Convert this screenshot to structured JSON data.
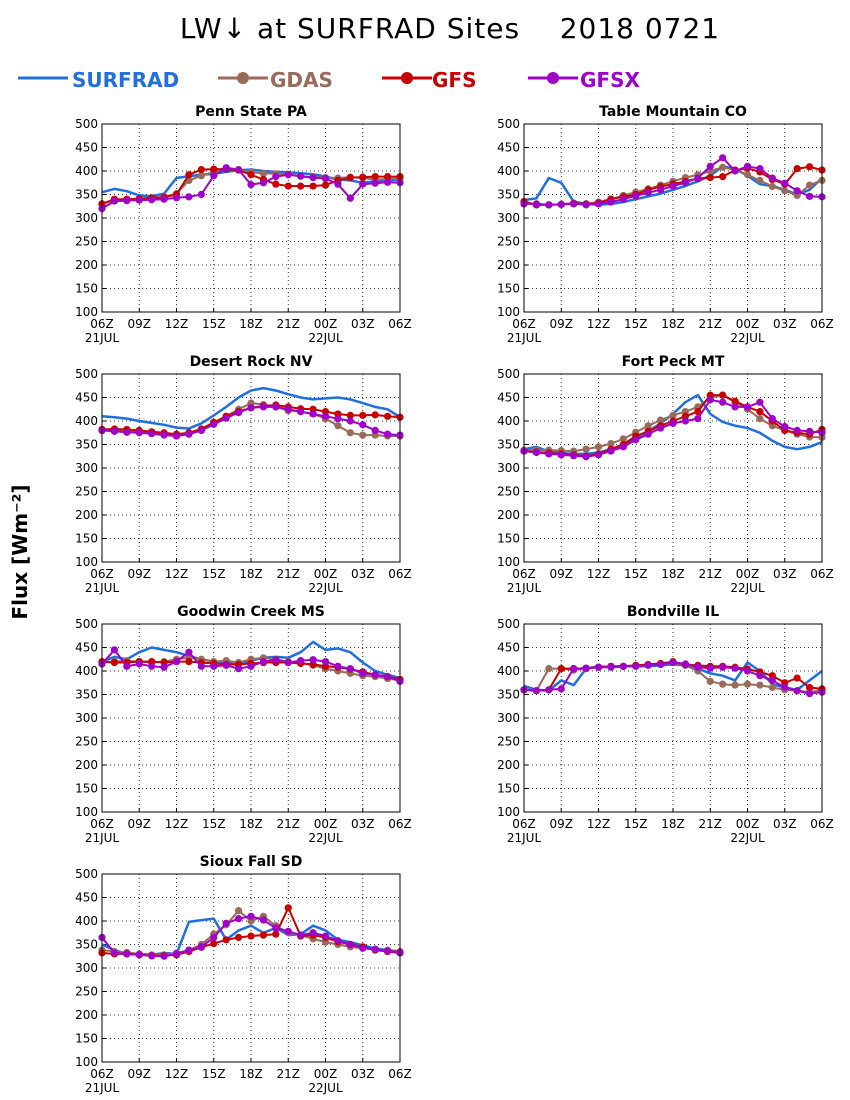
{
  "figure": {
    "title": "LW↓ at SURFRAD Sites    2018 0721",
    "ylabel": "Flux [Wm⁻²]"
  },
  "legend": [
    {
      "name": "SURFRAD",
      "color": "#1f6fe0",
      "marker": false
    },
    {
      "name": "GDAS",
      "color": "#9a6a5a",
      "marker": true
    },
    {
      "name": "GFS",
      "color": "#c80000",
      "marker": true
    },
    {
      "name": "GFSX",
      "color": "#a000c8",
      "marker": true
    }
  ],
  "axes_common": {
    "yticks": [
      "100",
      "150",
      "200",
      "250",
      "300",
      "350",
      "400",
      "450",
      "500"
    ],
    "xticks": [
      "06Z",
      "09Z",
      "12Z",
      "15Z",
      "18Z",
      "21Z",
      "00Z",
      "03Z",
      "06Z"
    ],
    "xdates": [
      {
        "label": "21JUL",
        "tick_index": 0
      },
      {
        "label": "22JUL",
        "tick_index": 6
      }
    ],
    "ylim": [
      100,
      500
    ],
    "xlim_hours": [
      0,
      24
    ],
    "grid": true
  },
  "chart_data": [
    {
      "type": "line",
      "title": "Penn State PA",
      "x_hours": [
        0,
        1,
        2,
        3,
        4,
        5,
        6,
        7,
        8,
        9,
        10,
        11,
        12,
        13,
        14,
        15,
        16,
        17,
        18,
        19,
        20,
        21,
        22,
        23,
        24
      ],
      "series": [
        {
          "name": "SURFRAD",
          "values": [
            355,
            362,
            357,
            348,
            346,
            352,
            385,
            389,
            392,
            394,
            398,
            402,
            403,
            400,
            398,
            397,
            395,
            393,
            388,
            382,
            380,
            375,
            378,
            380,
            382
          ]
        },
        {
          "name": "GDAS",
          "values": [
            330,
            338,
            339,
            340,
            340,
            345,
            352,
            380,
            390,
            398,
            405,
            402,
            397,
            395,
            394,
            393,
            389,
            387,
            386,
            385,
            387,
            385,
            382,
            383,
            384
          ]
        },
        {
          "name": "GFS",
          "values": [
            330,
            340,
            340,
            341,
            343,
            344,
            350,
            392,
            403,
            404,
            404,
            402,
            392,
            382,
            372,
            368,
            368,
            368,
            370,
            380,
            386,
            387,
            388,
            388,
            388
          ]
        },
        {
          "name": "GFSX",
          "values": [
            320,
            336,
            337,
            338,
            339,
            340,
            343,
            345,
            350,
            390,
            407,
            403,
            371,
            375,
            388,
            392,
            389,
            386,
            384,
            372,
            342,
            372,
            374,
            376,
            375
          ]
        }
      ]
    },
    {
      "type": "line",
      "title": "Table Mountain CO",
      "x_hours": [
        0,
        1,
        2,
        3,
        4,
        5,
        6,
        7,
        8,
        9,
        10,
        11,
        12,
        13,
        14,
        15,
        16,
        17,
        18,
        19,
        20,
        21,
        22,
        23,
        24
      ],
      "series": [
        {
          "name": "SURFRAD",
          "values": [
            338,
            342,
            385,
            375,
            335,
            330,
            328,
            330,
            334,
            340,
            346,
            352,
            360,
            368,
            378,
            390,
            410,
            405,
            390,
            372,
            368,
            360,
            350,
            360,
            385
          ]
        },
        {
          "name": "GDAS",
          "values": [
            335,
            328,
            328,
            329,
            332,
            330,
            334,
            340,
            348,
            355,
            362,
            370,
            378,
            386,
            392,
            400,
            408,
            402,
            392,
            380,
            367,
            358,
            348,
            370,
            380
          ]
        },
        {
          "name": "GFS",
          "values": [
            335,
            328,
            328,
            329,
            331,
            330,
            332,
            340,
            345,
            350,
            360,
            367,
            372,
            378,
            384,
            386,
            388,
            402,
            406,
            398,
            382,
            372,
            405,
            409,
            402
          ]
        },
        {
          "name": "GFSX",
          "values": [
            330,
            330,
            328,
            329,
            330,
            328,
            330,
            334,
            340,
            347,
            354,
            360,
            368,
            375,
            385,
            410,
            428,
            400,
            410,
            405,
            385,
            374,
            358,
            346,
            345
          ]
        }
      ]
    },
    {
      "type": "line",
      "title": "Desert Rock NV",
      "x_hours": [
        0,
        1,
        2,
        3,
        4,
        5,
        6,
        7,
        8,
        9,
        10,
        11,
        12,
        13,
        14,
        15,
        16,
        17,
        18,
        19,
        20,
        21,
        22,
        23,
        24
      ],
      "series": [
        {
          "name": "SURFRAD",
          "values": [
            410,
            408,
            405,
            400,
            396,
            392,
            386,
            384,
            395,
            412,
            430,
            450,
            465,
            470,
            465,
            457,
            450,
            446,
            448,
            450,
            446,
            438,
            430,
            425,
            408
          ]
        },
        {
          "name": "GDAS",
          "values": [
            380,
            381,
            379,
            378,
            374,
            372,
            370,
            372,
            380,
            395,
            410,
            425,
            438,
            435,
            430,
            422,
            420,
            415,
            405,
            390,
            375,
            370,
            370,
            368,
            368
          ]
        },
        {
          "name": "GFS",
          "values": [
            382,
            383,
            382,
            380,
            377,
            375,
            372,
            375,
            383,
            397,
            410,
            420,
            428,
            432,
            434,
            430,
            426,
            425,
            420,
            415,
            412,
            412,
            413,
            410,
            408
          ]
        },
        {
          "name": "GFSX",
          "values": [
            380,
            378,
            376,
            375,
            373,
            370,
            368,
            372,
            380,
            393,
            406,
            418,
            428,
            430,
            430,
            425,
            420,
            415,
            410,
            405,
            400,
            392,
            380,
            372,
            370
          ]
        }
      ]
    },
    {
      "type": "line",
      "title": "Fort Peck MT",
      "x_hours": [
        0,
        1,
        2,
        3,
        4,
        5,
        6,
        7,
        8,
        9,
        10,
        11,
        12,
        13,
        14,
        15,
        16,
        17,
        18,
        19,
        20,
        21,
        22,
        23,
        24
      ],
      "series": [
        {
          "name": "SURFRAD",
          "values": [
            340,
            345,
            335,
            332,
            330,
            330,
            333,
            340,
            350,
            362,
            378,
            395,
            415,
            440,
            455,
            415,
            398,
            390,
            385,
            375,
            358,
            345,
            340,
            345,
            355
          ]
        },
        {
          "name": "GDAS",
          "values": [
            338,
            338,
            338,
            337,
            336,
            340,
            345,
            352,
            362,
            376,
            390,
            402,
            412,
            420,
            430,
            450,
            455,
            440,
            425,
            405,
            390,
            380,
            372,
            366,
            365
          ]
        },
        {
          "name": "GFS",
          "values": [
            336,
            334,
            332,
            330,
            328,
            325,
            330,
            340,
            350,
            368,
            378,
            390,
            400,
            410,
            420,
            455,
            455,
            442,
            430,
            420,
            400,
            380,
            375,
            372,
            382
          ]
        },
        {
          "name": "GFSX",
          "values": [
            336,
            333,
            330,
            328,
            326,
            324,
            328,
            336,
            345,
            360,
            372,
            385,
            395,
            400,
            405,
            445,
            440,
            430,
            430,
            440,
            405,
            388,
            380,
            378,
            375
          ]
        }
      ]
    },
    {
      "type": "line",
      "title": "Goodwin Creek MS",
      "x_hours": [
        0,
        1,
        2,
        3,
        4,
        5,
        6,
        7,
        8,
        9,
        10,
        11,
        12,
        13,
        14,
        15,
        16,
        17,
        18,
        19,
        20,
        21,
        22,
        23,
        24
      ],
      "series": [
        {
          "name": "SURFRAD",
          "values": [
            420,
            430,
            425,
            440,
            450,
            445,
            440,
            432,
            425,
            420,
            418,
            412,
            422,
            428,
            430,
            428,
            440,
            462,
            445,
            448,
            440,
            418,
            400,
            392,
            385
          ]
        },
        {
          "name": "GDAS",
          "values": [
            418,
            420,
            422,
            420,
            418,
            420,
            425,
            428,
            425,
            420,
            422,
            418,
            425,
            428,
            425,
            420,
            418,
            412,
            405,
            400,
            395,
            390,
            388,
            384,
            380
          ]
        },
        {
          "name": "GFS",
          "values": [
            420,
            418,
            418,
            420,
            420,
            418,
            420,
            420,
            418,
            416,
            414,
            414,
            416,
            418,
            418,
            418,
            416,
            414,
            410,
            408,
            404,
            398,
            392,
            388,
            382
          ]
        },
        {
          "name": "GFSX",
          "values": [
            415,
            445,
            410,
            415,
            410,
            408,
            420,
            440,
            410,
            410,
            412,
            405,
            410,
            420,
            424,
            418,
            422,
            424,
            420,
            410,
            405,
            395,
            392,
            388,
            378
          ]
        }
      ]
    },
    {
      "type": "line",
      "title": "Bondville IL",
      "x_hours": [
        0,
        1,
        2,
        3,
        4,
        5,
        6,
        7,
        8,
        9,
        10,
        11,
        12,
        13,
        14,
        15,
        16,
        17,
        18,
        19,
        20,
        21,
        22,
        23,
        24
      ],
      "series": [
        {
          "name": "SURFRAD",
          "values": [
            368,
            360,
            358,
            380,
            370,
            405,
            410,
            408,
            410,
            410,
            410,
            412,
            414,
            412,
            405,
            395,
            390,
            380,
            418,
            400,
            372,
            365,
            360,
            380,
            400
          ]
        },
        {
          "name": "GDAS",
          "values": [
            360,
            358,
            405,
            405,
            402,
            405,
            408,
            410,
            410,
            412,
            413,
            414,
            418,
            412,
            400,
            378,
            372,
            370,
            372,
            370,
            365,
            360,
            358,
            355,
            360
          ]
        },
        {
          "name": "GFS",
          "values": [
            360,
            358,
            360,
            405,
            405,
            406,
            408,
            410,
            410,
            412,
            414,
            416,
            420,
            414,
            412,
            410,
            410,
            408,
            404,
            398,
            390,
            375,
            385,
            365,
            362
          ]
        },
        {
          "name": "GFSX",
          "values": [
            360,
            358,
            360,
            362,
            405,
            406,
            408,
            408,
            410,
            410,
            412,
            414,
            418,
            415,
            408,
            406,
            408,
            406,
            400,
            390,
            380,
            365,
            358,
            352,
            355
          ]
        }
      ]
    },
    {
      "type": "line",
      "title": "Sioux Fall SD",
      "x_hours": [
        0,
        1,
        2,
        3,
        4,
        5,
        6,
        7,
        8,
        9,
        10,
        11,
        12,
        13,
        14,
        15,
        16,
        17,
        18,
        19,
        20,
        21,
        22,
        23,
        24
      ],
      "series": [
        {
          "name": "SURFRAD",
          "values": [
            350,
            338,
            330,
            330,
            328,
            332,
            330,
            398,
            402,
            405,
            360,
            380,
            390,
            375,
            385,
            370,
            372,
            390,
            380,
            360,
            355,
            348,
            342,
            338,
            335
          ]
        },
        {
          "name": "GDAS",
          "values": [
            338,
            335,
            333,
            330,
            328,
            328,
            332,
            338,
            350,
            372,
            392,
            422,
            400,
            410,
            390,
            375,
            370,
            362,
            355,
            350,
            345,
            342,
            340,
            338,
            335
          ]
        },
        {
          "name": "GFS",
          "values": [
            332,
            330,
            330,
            328,
            326,
            326,
            328,
            335,
            344,
            352,
            360,
            365,
            368,
            370,
            372,
            428,
            368,
            370,
            365,
            356,
            350,
            345,
            338,
            335,
            332
          ]
        },
        {
          "name": "GFSX",
          "values": [
            365,
            332,
            330,
            328,
            326,
            325,
            330,
            338,
            345,
            365,
            395,
            405,
            410,
            402,
            385,
            378,
            370,
            375,
            368,
            358,
            350,
            342,
            340,
            336,
            334
          ]
        }
      ]
    }
  ]
}
